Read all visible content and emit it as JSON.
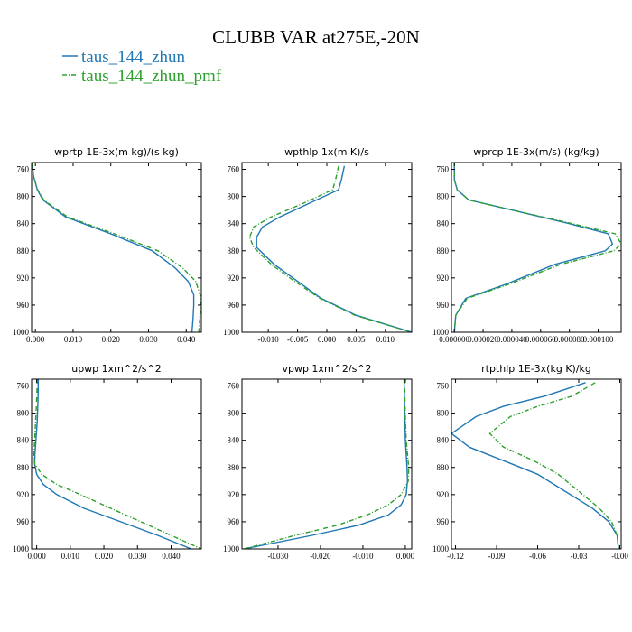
{
  "title": "CLUBB VAR at275E,-20N",
  "legend": [
    {
      "label": "taus_144_zhun",
      "color": "#1f77b4",
      "dash": "solid"
    },
    {
      "label": "taus_144_zhun_pmf",
      "color": "#2ca02c",
      "dash": "dash-dot"
    }
  ],
  "chart_data": [
    {
      "type": "line",
      "title": "wprtp  1E-3x(m kg)/(s kg)",
      "xlim": [
        -0.001,
        0.044
      ],
      "ylim": [
        1000,
        750
      ],
      "xticks": [
        0.0,
        0.01,
        0.02,
        0.03,
        0.04
      ],
      "xtick_labels": [
        "0.000",
        "0.010",
        "0.020",
        "0.030",
        "0.040"
      ],
      "yticks": [
        760,
        800,
        840,
        880,
        920,
        960,
        1000
      ],
      "series": [
        {
          "name": "taus_144_zhun",
          "x": [
            -0.0008,
            -0.0005,
            0.0005,
            0.002,
            0.008,
            0.02,
            0.031,
            0.037,
            0.0405,
            0.042,
            0.042,
            0.0418,
            0.0415
          ],
          "y": [
            750,
            770,
            790,
            805,
            830,
            855,
            880,
            905,
            925,
            945,
            960,
            980,
            1000
          ]
        },
        {
          "name": "taus_144_zhun_pmf",
          "x": [
            -0.0008,
            -0.0005,
            0.0006,
            0.0022,
            0.0085,
            0.021,
            0.0325,
            0.039,
            0.0425,
            0.0437,
            0.0438,
            0.0436,
            0.0433
          ],
          "y": [
            750,
            770,
            790,
            805,
            830,
            855,
            880,
            905,
            925,
            945,
            960,
            980,
            1000
          ]
        }
      ]
    },
    {
      "type": "line",
      "title": "wpthlp  1x(m K)/s",
      "xlim": [
        -0.0145,
        0.0145
      ],
      "ylim": [
        1000,
        750
      ],
      "xticks": [
        -0.01,
        -0.005,
        0.0,
        0.005,
        0.01
      ],
      "xtick_labels": [
        "-0.010",
        "-0.005",
        "0.000",
        "0.005",
        "0.010"
      ],
      "yticks": [
        760,
        800,
        840,
        880,
        920,
        960,
        1000
      ],
      "series": [
        {
          "name": "taus_144_zhun",
          "x": [
            0.003,
            0.0025,
            0.002,
            -0.003,
            -0.008,
            -0.011,
            -0.012,
            -0.012,
            -0.009,
            -0.005,
            -0.001,
            0.005,
            0.0145
          ],
          "y": [
            755,
            775,
            790,
            810,
            830,
            845,
            860,
            875,
            900,
            925,
            950,
            975,
            1000
          ]
        },
        {
          "name": "taus_144_zhun_pmf",
          "x": [
            0.002,
            0.0015,
            0.001,
            -0.004,
            -0.0095,
            -0.0125,
            -0.0132,
            -0.0125,
            -0.0095,
            -0.0055,
            -0.0012,
            0.0048,
            0.0145
          ],
          "y": [
            755,
            775,
            790,
            810,
            830,
            845,
            860,
            875,
            900,
            925,
            950,
            975,
            1000
          ]
        }
      ]
    },
    {
      "type": "line",
      "title": "wprcp  1E-3x(m/s) (kg/kg)",
      "xlim": [
        -2e-06,
        0.000116
      ],
      "ylim": [
        1000,
        750
      ],
      "xticks": [
        0.0,
        2e-05,
        4e-05,
        6e-05,
        8e-05,
        0.0001
      ],
      "xtick_labels": [
        "0.000000",
        "0.000020",
        "0.000040",
        "0.000060",
        "0.000080",
        "0.000100"
      ],
      "yticks": [
        760,
        800,
        840,
        880,
        920,
        960,
        1000
      ],
      "series": [
        {
          "name": "taus_144_zhun",
          "x": [
            0.0,
            0.0,
            0.0,
            2e-06,
            1e-05,
            4e-05,
            8e-05,
            0.000107,
            0.00011,
            0.000105,
            7e-05,
            3.5e-05,
            8e-06,
            1e-06,
            0.0
          ],
          "y": [
            750,
            765,
            775,
            790,
            805,
            820,
            840,
            855,
            870,
            880,
            900,
            930,
            950,
            975,
            1000
          ]
        },
        {
          "name": "taus_144_zhun_pmf",
          "x": [
            0.0,
            0.0,
            0.0,
            2e-06,
            1e-05,
            4e-05,
            8.2e-05,
            0.000112,
            0.000116,
            0.000111,
            7.4e-05,
            3.7e-05,
            9e-06,
            1e-06,
            0.0
          ],
          "y": [
            750,
            765,
            775,
            790,
            805,
            820,
            840,
            855,
            870,
            880,
            900,
            930,
            950,
            975,
            1000
          ]
        }
      ]
    },
    {
      "type": "line",
      "title": "upwp  1xm^2/s^2",
      "xlim": [
        -0.0015,
        0.049
      ],
      "ylim": [
        1000,
        750
      ],
      "xticks": [
        0.0,
        0.01,
        0.02,
        0.03,
        0.04
      ],
      "xtick_labels": [
        "0.000",
        "0.010",
        "0.020",
        "0.030",
        "0.040"
      ],
      "yticks": [
        760,
        800,
        840,
        880,
        920,
        960,
        1000
      ],
      "series": [
        {
          "name": "taus_144_zhun",
          "x": [
            0.0005,
            0.0004,
            0.0002,
            -0.0002,
            -0.0005,
            -0.0006,
            0.0,
            0.002,
            0.006,
            0.014,
            0.025,
            0.036,
            0.046
          ],
          "y": [
            750,
            780,
            810,
            840,
            860,
            875,
            890,
            905,
            920,
            940,
            960,
            980,
            1000
          ]
        },
        {
          "name": "taus_144_zhun_pmf",
          "x": [
            0.0002,
            0.0,
            -0.0003,
            -0.0006,
            -0.0008,
            -0.0006,
            0.0015,
            0.006,
            0.013,
            0.022,
            0.031,
            0.04,
            0.049
          ],
          "y": [
            750,
            780,
            810,
            840,
            860,
            875,
            890,
            905,
            920,
            940,
            960,
            980,
            1000
          ]
        }
      ]
    },
    {
      "type": "line",
      "title": "vpwp  1xm^2/s^2",
      "xlim": [
        -0.0385,
        0.0015
      ],
      "ylim": [
        1000,
        750
      ],
      "xticks": [
        -0.03,
        -0.02,
        -0.01,
        0.0
      ],
      "xtick_labels": [
        "-0.030",
        "-0.020",
        "-0.010",
        "0.000"
      ],
      "yticks": [
        760,
        800,
        840,
        880,
        920,
        960,
        1000
      ],
      "series": [
        {
          "name": "taus_144_zhun",
          "x": [
            -0.0003,
            -0.0002,
            -0.0001,
            0.0,
            0.0002,
            0.0004,
            0.0005,
            0.0002,
            -0.001,
            -0.004,
            -0.011,
            -0.022,
            -0.038
          ],
          "y": [
            750,
            780,
            810,
            840,
            860,
            880,
            900,
            920,
            935,
            950,
            965,
            980,
            1000
          ]
        },
        {
          "name": "taus_144_zhun_pmf",
          "x": [
            -0.0002,
            -0.0001,
            0.0,
            0.0002,
            0.0005,
            0.0008,
            0.0007,
            -0.001,
            -0.004,
            -0.009,
            -0.016,
            -0.026,
            -0.038
          ],
          "y": [
            750,
            780,
            810,
            840,
            860,
            880,
            900,
            920,
            935,
            950,
            965,
            980,
            1000
          ]
        }
      ]
    },
    {
      "type": "line",
      "title": "rtpthlp  1E-3x(kg K)/kg",
      "xlim": [
        -0.123,
        0.001
      ],
      "ylim": [
        1000,
        750
      ],
      "xticks": [
        -0.12,
        -0.09,
        -0.06,
        -0.03,
        0.0
      ],
      "xtick_labels": [
        "-0.12",
        "-0.09",
        "-0.06",
        "-0.03",
        "-0.00"
      ],
      "yticks": [
        760,
        800,
        840,
        880,
        920,
        960,
        1000
      ],
      "series": [
        {
          "name": "taus_144_zhun",
          "x": [
            -0.025,
            -0.055,
            -0.085,
            -0.105,
            -0.123,
            -0.11,
            -0.085,
            -0.06,
            -0.04,
            -0.02,
            -0.008,
            -0.002,
            -0.001
          ],
          "y": [
            755,
            775,
            790,
            805,
            830,
            850,
            870,
            890,
            915,
            940,
            960,
            980,
            1000
          ]
        },
        {
          "name": "taus_144_zhun_pmf",
          "x": [
            -0.018,
            -0.035,
            -0.06,
            -0.08,
            -0.095,
            -0.085,
            -0.063,
            -0.045,
            -0.03,
            -0.015,
            -0.006,
            -0.002,
            -0.001
          ],
          "y": [
            755,
            775,
            790,
            805,
            830,
            850,
            870,
            890,
            915,
            940,
            960,
            980,
            1000
          ]
        }
      ]
    }
  ]
}
